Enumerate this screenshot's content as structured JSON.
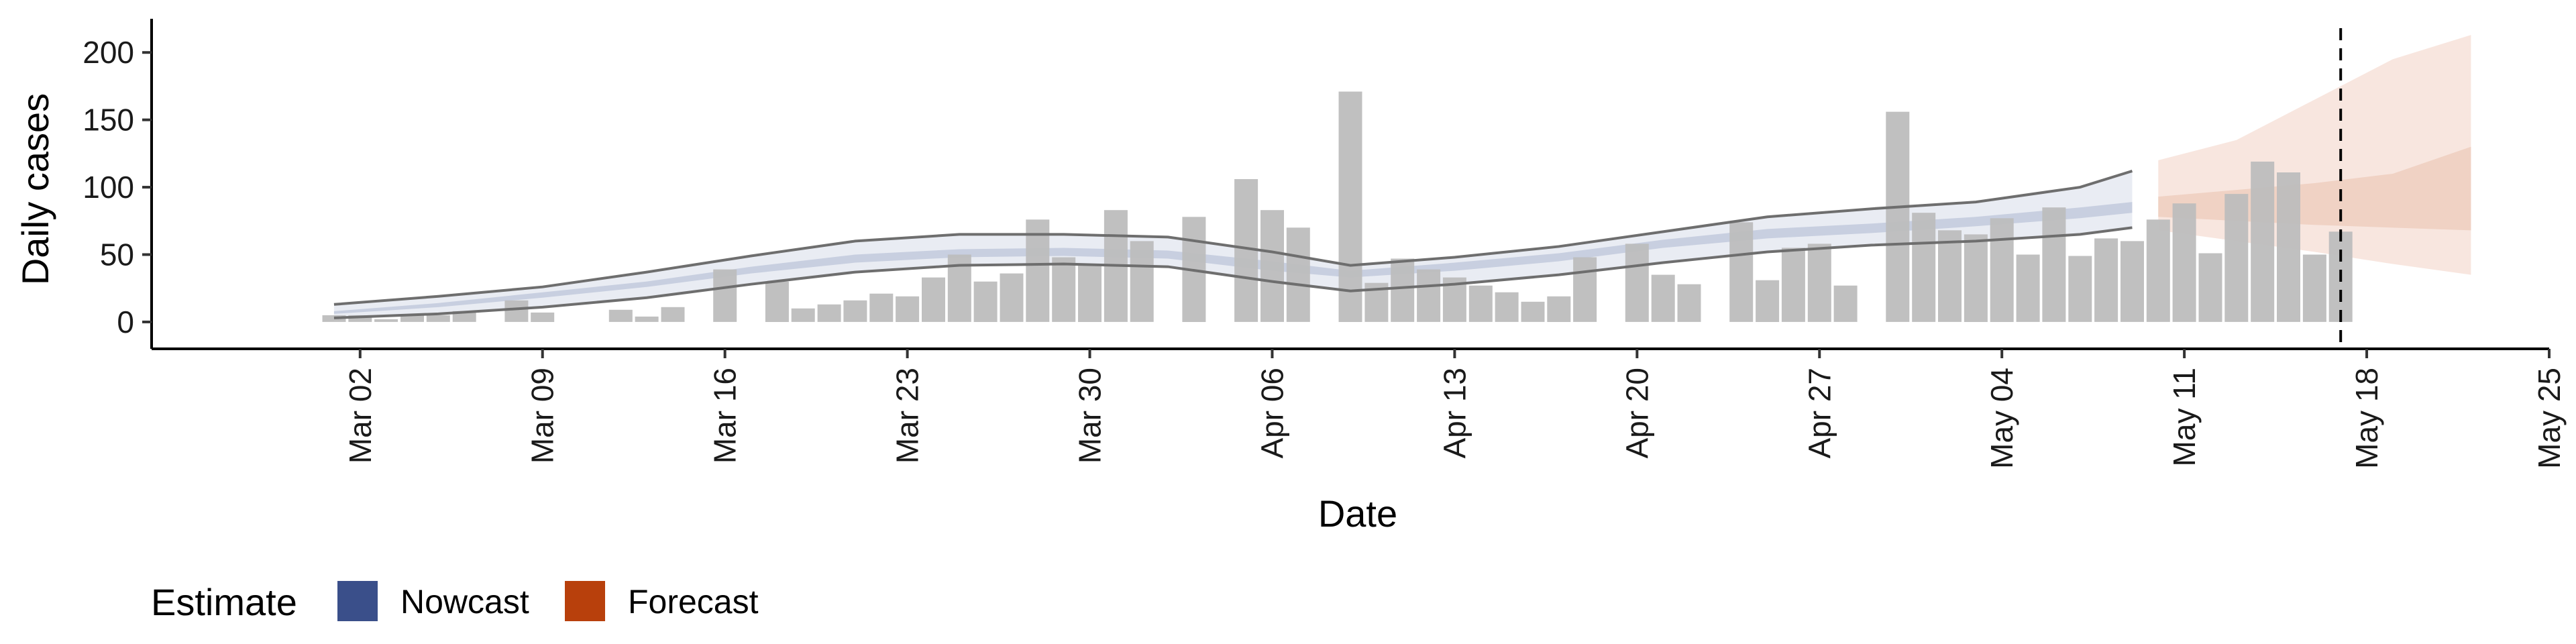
{
  "chart_data": {
    "type": "bar",
    "xlabel": "Date",
    "ylabel": "Daily cases",
    "ylim": [
      -10,
      225
    ],
    "xlim": [
      "2020-02-23",
      "2020-05-25"
    ],
    "y_ticks": [
      0,
      50,
      100,
      150,
      200
    ],
    "x_tick_dates": [
      "2020-03-02",
      "2020-03-09",
      "2020-03-16",
      "2020-03-23",
      "2020-03-30",
      "2020-04-06",
      "2020-04-13",
      "2020-04-20",
      "2020-04-27",
      "2020-05-04",
      "2020-05-11",
      "2020-05-18",
      "2020-05-25"
    ],
    "x_tick_labels": [
      "Mar 02",
      "Mar 09",
      "Mar 16",
      "Mar 23",
      "Mar 30",
      "Apr 06",
      "Apr 13",
      "Apr 20",
      "Apr 27",
      "May 04",
      "May 11",
      "May 18",
      "May 25"
    ],
    "vline_date": "2020-05-17",
    "grid": false,
    "legend": {
      "title": "Estimate",
      "position": "bottom-left",
      "entries": [
        {
          "label": "Nowcast",
          "color": "#3a4f8a"
        },
        {
          "label": "Forecast",
          "color": "#b8400c"
        }
      ]
    },
    "colors": {
      "bars": "#bdbdbd",
      "nowcast_outer": "#e9ecf3",
      "nowcast_inner": "#c8cfe0",
      "nowcast_line": "#6e6e6e",
      "forecast_outer": "#f8e6df",
      "forecast_inner": "#f0d2c4"
    },
    "observed_cases": [
      {
        "date": "2020-03-01",
        "value": 5
      },
      {
        "date": "2020-03-02",
        "value": 5
      },
      {
        "date": "2020-03-03",
        "value": 2
      },
      {
        "date": "2020-03-04",
        "value": 5
      },
      {
        "date": "2020-03-05",
        "value": 5
      },
      {
        "date": "2020-03-06",
        "value": 8
      },
      {
        "date": "2020-03-08",
        "value": 16
      },
      {
        "date": "2020-03-09",
        "value": 7
      },
      {
        "date": "2020-03-12",
        "value": 9
      },
      {
        "date": "2020-03-13",
        "value": 4
      },
      {
        "date": "2020-03-14",
        "value": 11
      },
      {
        "date": "2020-03-16",
        "value": 39
      },
      {
        "date": "2020-03-18",
        "value": 30
      },
      {
        "date": "2020-03-19",
        "value": 10
      },
      {
        "date": "2020-03-20",
        "value": 13
      },
      {
        "date": "2020-03-21",
        "value": 16
      },
      {
        "date": "2020-03-22",
        "value": 21
      },
      {
        "date": "2020-03-23",
        "value": 19
      },
      {
        "date": "2020-03-24",
        "value": 33
      },
      {
        "date": "2020-03-25",
        "value": 50
      },
      {
        "date": "2020-03-26",
        "value": 30
      },
      {
        "date": "2020-03-27",
        "value": 36
      },
      {
        "date": "2020-03-28",
        "value": 76
      },
      {
        "date": "2020-03-29",
        "value": 48
      },
      {
        "date": "2020-03-30",
        "value": 42
      },
      {
        "date": "2020-03-31",
        "value": 83
      },
      {
        "date": "2020-04-01",
        "value": 60
      },
      {
        "date": "2020-04-03",
        "value": 78
      },
      {
        "date": "2020-04-05",
        "value": 106
      },
      {
        "date": "2020-04-06",
        "value": 83
      },
      {
        "date": "2020-04-07",
        "value": 70
      },
      {
        "date": "2020-04-09",
        "value": 171
      },
      {
        "date": "2020-04-10",
        "value": 29
      },
      {
        "date": "2020-04-11",
        "value": 47
      },
      {
        "date": "2020-04-12",
        "value": 39
      },
      {
        "date": "2020-04-13",
        "value": 33
      },
      {
        "date": "2020-04-14",
        "value": 27
      },
      {
        "date": "2020-04-15",
        "value": 22
      },
      {
        "date": "2020-04-16",
        "value": 15
      },
      {
        "date": "2020-04-17",
        "value": 19
      },
      {
        "date": "2020-04-18",
        "value": 48
      },
      {
        "date": "2020-04-20",
        "value": 58
      },
      {
        "date": "2020-04-21",
        "value": 35
      },
      {
        "date": "2020-04-22",
        "value": 28
      },
      {
        "date": "2020-04-24",
        "value": 74
      },
      {
        "date": "2020-04-25",
        "value": 31
      },
      {
        "date": "2020-04-26",
        "value": 55
      },
      {
        "date": "2020-04-27",
        "value": 58
      },
      {
        "date": "2020-04-28",
        "value": 27
      },
      {
        "date": "2020-04-30",
        "value": 156
      },
      {
        "date": "2020-05-01",
        "value": 81
      },
      {
        "date": "2020-05-02",
        "value": 68
      },
      {
        "date": "2020-05-03",
        "value": 65
      },
      {
        "date": "2020-05-04",
        "value": 77
      },
      {
        "date": "2020-05-05",
        "value": 50
      },
      {
        "date": "2020-05-06",
        "value": 85
      },
      {
        "date": "2020-05-07",
        "value": 49
      },
      {
        "date": "2020-05-08",
        "value": 62
      },
      {
        "date": "2020-05-09",
        "value": 60
      },
      {
        "date": "2020-05-10",
        "value": 76
      },
      {
        "date": "2020-05-11",
        "value": 88
      },
      {
        "date": "2020-05-12",
        "value": 51
      },
      {
        "date": "2020-05-13",
        "value": 95
      },
      {
        "date": "2020-05-14",
        "value": 119
      },
      {
        "date": "2020-05-15",
        "value": 111
      },
      {
        "date": "2020-05-16",
        "value": 50
      },
      {
        "date": "2020-05-17",
        "value": 67
      }
    ],
    "nowcast": {
      "dates": [
        "2020-03-01",
        "2020-03-05",
        "2020-03-09",
        "2020-03-13",
        "2020-03-17",
        "2020-03-21",
        "2020-03-25",
        "2020-03-29",
        "2020-04-02",
        "2020-04-06",
        "2020-04-09",
        "2020-04-13",
        "2020-04-17",
        "2020-04-21",
        "2020-04-25",
        "2020-04-29",
        "2020-05-03",
        "2020-05-07",
        "2020-05-09"
      ],
      "lower_90": [
        3,
        6,
        11,
        18,
        28,
        37,
        42,
        43,
        41,
        30,
        23,
        28,
        35,
        44,
        52,
        57,
        60,
        65,
        70
      ],
      "lower_50": [
        6,
        11,
        18,
        26,
        36,
        44,
        48,
        49,
        47,
        38,
        33,
        38,
        45,
        55,
        62,
        66,
        71,
        77,
        81
      ],
      "upper_50": [
        8,
        14,
        22,
        30,
        41,
        50,
        54,
        55,
        53,
        45,
        38,
        44,
        51,
        61,
        69,
        73,
        78,
        85,
        89
      ],
      "upper_90": [
        13,
        19,
        26,
        37,
        49,
        60,
        65,
        65,
        63,
        52,
        42,
        48,
        56,
        67,
        78,
        84,
        89,
        100,
        112
      ]
    },
    "forecast": {
      "dates": [
        "2020-05-10",
        "2020-05-13",
        "2020-05-16",
        "2020-05-19",
        "2020-05-22"
      ],
      "lower_90": [
        68,
        60,
        52,
        43,
        35
      ],
      "lower_50": [
        78,
        75,
        72,
        70,
        68
      ],
      "upper_50": [
        93,
        98,
        103,
        110,
        130
      ],
      "upper_90": [
        120,
        135,
        165,
        195,
        213
      ]
    }
  }
}
